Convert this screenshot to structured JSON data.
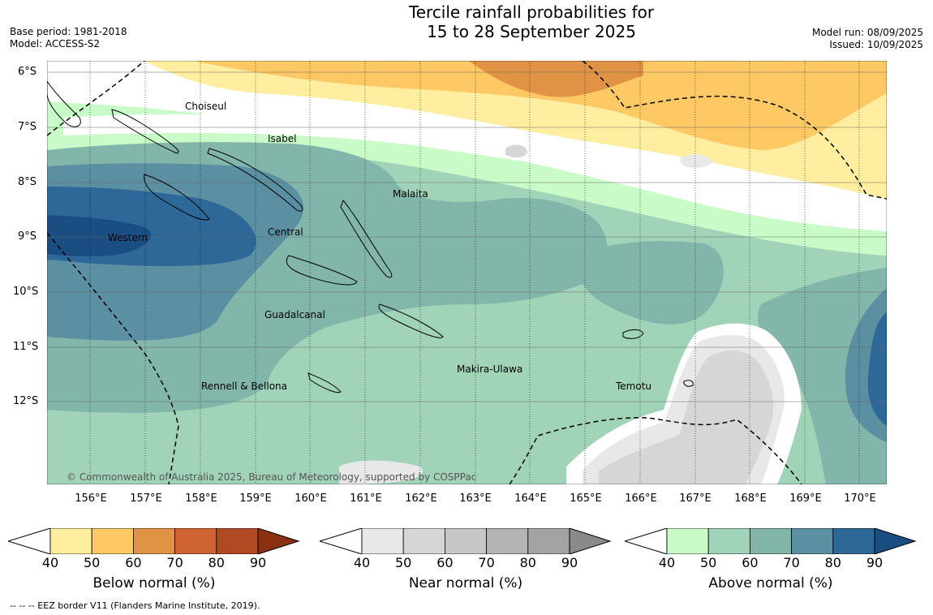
{
  "header": {
    "title_line1": "Tercile rainfall probabilities for",
    "title_line2": "15 to 28 September 2025",
    "base_period": "Base period: 1981-2018",
    "model": "Model: ACCESS-S2",
    "model_run": "Model run: 08/09/2025",
    "issued": "Issued: 10/09/2025"
  },
  "map": {
    "lat_labels": [
      "6°S",
      "7°S",
      "8°S",
      "9°S",
      "10°S",
      "11°S",
      "12°S"
    ],
    "lon_labels": [
      "156°E",
      "157°E",
      "158°E",
      "159°E",
      "160°E",
      "161°E",
      "162°E",
      "163°E",
      "164°E",
      "165°E",
      "166°E",
      "167°E",
      "168°E",
      "169°E",
      "170°E"
    ],
    "regions": [
      "Choiseul",
      "Isabel",
      "Malaita",
      "Western",
      "Central",
      "Guadalcanal",
      "Makira-Ulawa",
      "Temotu",
      "Rennell & Bellona"
    ],
    "copyright": "© Commonwealth of Australia 2025, Bureau of Meteorology, supported by COSPPac"
  },
  "colorbars": [
    {
      "label": "Below normal (%)",
      "ticks": [
        "40",
        "50",
        "60",
        "70",
        "80",
        "90"
      ],
      "colors": [
        "#ffeea0",
        "#fec965",
        "#e09345",
        "#cf6334",
        "#b04a25",
        "#8c3012"
      ]
    },
    {
      "label": "Near normal (%)",
      "ticks": [
        "40",
        "50",
        "60",
        "70",
        "80",
        "90"
      ],
      "colors": [
        "#e8e8e8",
        "#d6d6d6",
        "#c6c6c6",
        "#b4b4b4",
        "#a3a3a3",
        "#8a8a8a"
      ]
    },
    {
      "label": "Above normal (%)",
      "ticks": [
        "40",
        "50",
        "60",
        "70",
        "80",
        "90"
      ],
      "colors": [
        "#c9fbc8",
        "#a1d3b8",
        "#83b6aa",
        "#5b8fa2",
        "#2e6899",
        "#1a4e82"
      ]
    }
  ],
  "footnote": "-- -- -- EEZ border V11 (Flanders Marine Institute, 2019)."
}
